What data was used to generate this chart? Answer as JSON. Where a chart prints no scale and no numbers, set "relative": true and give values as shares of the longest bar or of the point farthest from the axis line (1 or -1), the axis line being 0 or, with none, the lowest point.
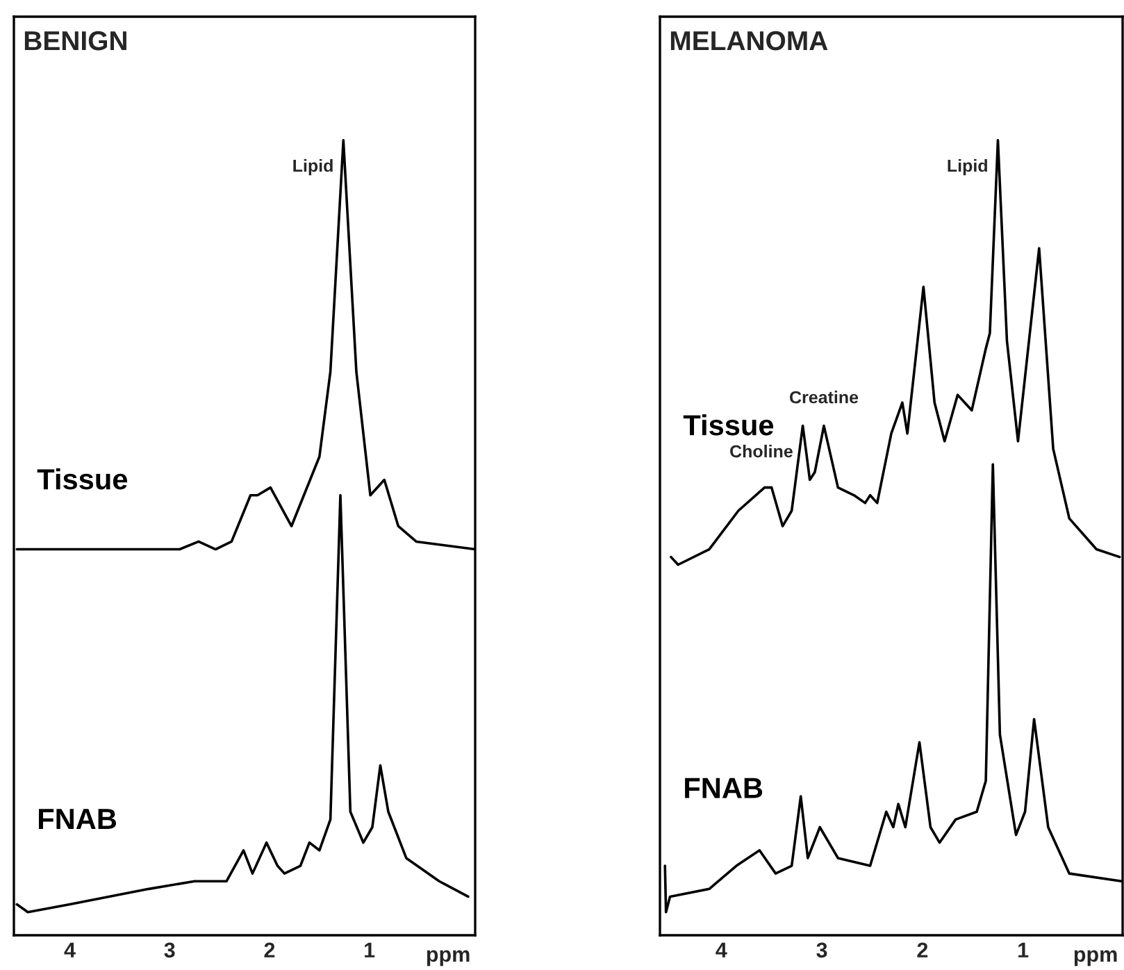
{
  "chart_data": [
    {
      "type": "line",
      "title": "BENIGN",
      "xlabel": "ppm",
      "relative": true,
      "xlim": [
        4.56,
        -0.06
      ],
      "xticks": [
        4,
        3,
        2,
        1
      ],
      "tick_labels": "x",
      "grid": false,
      "legend": false,
      "marker": "none",
      "line_style": "solid",
      "annotations": [
        {
          "text": "Lipid",
          "x": 1.26,
          "y": 1.0
        }
      ],
      "series": [
        {
          "name": "Tissue",
          "color": "#000000",
          "x": [
            4.53,
            4.0,
            3.5,
            2.9,
            2.71,
            2.54,
            2.38,
            2.19,
            2.12,
            1.99,
            1.78,
            1.5,
            1.39,
            1.26,
            1.13,
            0.99,
            0.85,
            0.71,
            0.53,
            -0.06
          ],
          "values": [
            0.47,
            0.47,
            0.47,
            0.47,
            0.48,
            0.47,
            0.48,
            0.54,
            0.54,
            0.55,
            0.5,
            0.59,
            0.7,
            1.0,
            0.7,
            0.54,
            0.56,
            0.5,
            0.48,
            0.47
          ]
        },
        {
          "name": "FNAB",
          "color": "#000000",
          "x": [
            4.53,
            4.42,
            4.0,
            3.21,
            2.75,
            2.43,
            2.26,
            2.17,
            2.03,
            1.92,
            1.85,
            1.69,
            1.6,
            1.5,
            1.39,
            1.29,
            1.19,
            1.06,
            0.97,
            0.89,
            0.81,
            0.63,
            0.3,
            0.01
          ],
          "values": [
            0.01,
            0.0,
            0.01,
            0.03,
            0.04,
            0.04,
            0.08,
            0.05,
            0.09,
            0.06,
            0.05,
            0.06,
            0.09,
            0.08,
            0.12,
            0.54,
            0.13,
            0.09,
            0.11,
            0.19,
            0.13,
            0.07,
            0.04,
            0.02
          ]
        }
      ]
    },
    {
      "type": "line",
      "title": "MELANOMA",
      "xlabel": "ppm",
      "relative": true,
      "xlim": [
        4.61,
        0.01
      ],
      "xticks": [
        4,
        3,
        2,
        1
      ],
      "tick_labels": "x",
      "grid": false,
      "legend": false,
      "marker": "none",
      "line_style": "solid",
      "annotations": [
        {
          "text": "Lipid",
          "x": 1.25,
          "y": 1.0
        },
        {
          "text": "Choline",
          "x": 3.19,
          "y": 0.63
        },
        {
          "text": "Creatine",
          "x": 2.98,
          "y": 0.63
        }
      ],
      "series": [
        {
          "name": "Tissue",
          "color": "#000000",
          "x": [
            4.5,
            4.43,
            4.12,
            3.83,
            3.57,
            3.5,
            3.39,
            3.3,
            3.19,
            3.12,
            3.07,
            2.98,
            2.84,
            2.68,
            2.57,
            2.52,
            2.45,
            2.31,
            2.2,
            2.15,
            1.99,
            1.88,
            1.78,
            1.65,
            1.51,
            1.37,
            1.33,
            1.25,
            1.16,
            1.05,
            0.84,
            0.7,
            0.54,
            0.27,
            0.04
          ],
          "values": [
            0.46,
            0.45,
            0.47,
            0.52,
            0.55,
            0.55,
            0.5,
            0.52,
            0.63,
            0.56,
            0.57,
            0.63,
            0.55,
            0.54,
            0.53,
            0.54,
            0.53,
            0.62,
            0.66,
            0.62,
            0.81,
            0.66,
            0.61,
            0.67,
            0.65,
            0.73,
            0.75,
            1.0,
            0.74,
            0.61,
            0.86,
            0.6,
            0.51,
            0.47,
            0.46
          ]
        },
        {
          "name": "FNAB",
          "color": "#000000",
          "x": [
            4.56,
            4.55,
            4.51,
            4.12,
            3.85,
            3.62,
            3.46,
            3.3,
            3.21,
            3.14,
            3.02,
            2.84,
            2.52,
            2.36,
            2.29,
            2.24,
            2.17,
            2.03,
            1.92,
            1.83,
            1.67,
            1.46,
            1.37,
            1.3,
            1.23,
            1.07,
            0.98,
            0.89,
            0.75,
            0.54,
            0.02
          ],
          "values": [
            0.06,
            0.0,
            0.02,
            0.03,
            0.06,
            0.08,
            0.05,
            0.06,
            0.15,
            0.07,
            0.11,
            0.07,
            0.06,
            0.13,
            0.11,
            0.14,
            0.11,
            0.22,
            0.11,
            0.09,
            0.12,
            0.13,
            0.17,
            0.58,
            0.23,
            0.1,
            0.13,
            0.25,
            0.11,
            0.05,
            0.04
          ]
        }
      ]
    }
  ]
}
